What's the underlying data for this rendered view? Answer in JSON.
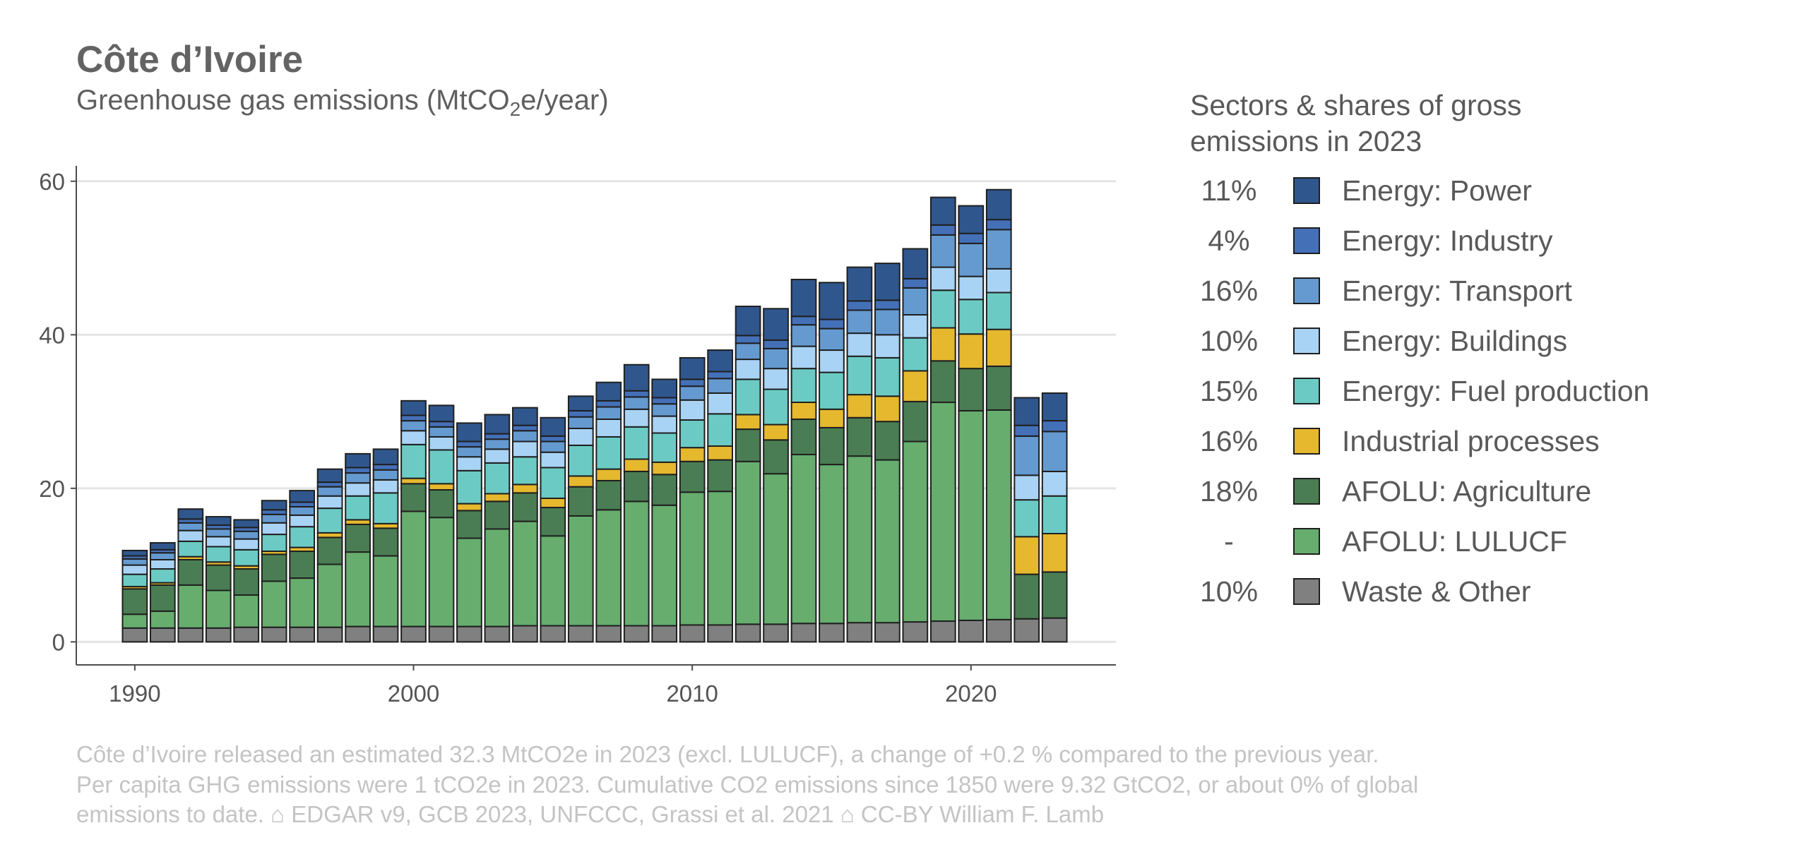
{
  "header": {
    "title": "Côte d’Ivoire",
    "subtitle_prefix": "Greenhouse gas emissions (MtCO",
    "subtitle_sub": "2",
    "subtitle_suffix": "e/year)"
  },
  "legend": {
    "title_line1": "Sectors & shares of gross",
    "title_line2": "emissions in 2023"
  },
  "caption": {
    "line1": "Côte d’Ivoire released an estimated 32.3 MtCO2e in 2023 (excl. LULUCF), a change of +0.2 % compared to the previous year.",
    "line2": "Per capita GHG emissions were 1 tCO2e in 2023. Cumulative CO2 emissions since 1850 were 9.32 GtCO2, or about 0% of global",
    "line3": "emissions to date. ⌂ EDGAR v9, GCB 2023, UNFCCC, Grassi et al. 2021 ⌂ CC-BY William F. Lamb"
  },
  "chart_data": {
    "type": "bar",
    "stacked": true,
    "title": "Côte d’Ivoire",
    "ylabel": "",
    "xlabel": "",
    "ylim": [
      -3,
      62
    ],
    "xlim": [
      1987.9,
      2025.2
    ],
    "y_ticks": [
      0,
      20,
      40,
      60
    ],
    "x_ticks": [
      1990,
      2000,
      2010,
      2020
    ],
    "grid": true,
    "legend_position": "right",
    "categories": [
      1990,
      1991,
      1992,
      1993,
      1994,
      1995,
      1996,
      1997,
      1998,
      1999,
      2000,
      2001,
      2002,
      2003,
      2004,
      2005,
      2006,
      2007,
      2008,
      2009,
      2010,
      2011,
      2012,
      2013,
      2014,
      2015,
      2016,
      2017,
      2018,
      2019,
      2020,
      2021,
      2022,
      2023
    ],
    "series": [
      {
        "name": "Waste & Other",
        "share": "10%",
        "color": "#808080",
        "values": [
          1.8,
          1.8,
          1.8,
          1.8,
          1.9,
          1.9,
          1.9,
          1.9,
          2.0,
          2.0,
          2.0,
          2.0,
          2.0,
          2.0,
          2.1,
          2.1,
          2.1,
          2.1,
          2.1,
          2.1,
          2.2,
          2.2,
          2.3,
          2.3,
          2.4,
          2.4,
          2.5,
          2.5,
          2.6,
          2.7,
          2.8,
          2.9,
          3.0,
          3.1
        ]
      },
      {
        "name": "AFOLU: LULUCF",
        "share": "-",
        "color": "#66ad6e",
        "values": [
          1.8,
          2.2,
          5.6,
          4.9,
          4.2,
          6.0,
          6.4,
          8.2,
          9.7,
          9.2,
          15.0,
          14.2,
          11.5,
          12.7,
          13.6,
          11.7,
          14.3,
          15.1,
          16.2,
          15.7,
          17.3,
          17.4,
          21.2,
          19.6,
          22.0,
          20.7,
          21.7,
          21.2,
          23.5,
          28.5,
          27.3,
          27.3,
          0,
          0
        ]
      },
      {
        "name": "AFOLU: Agriculture",
        "share": "18%",
        "color": "#4a7d53",
        "values": [
          3.3,
          3.4,
          3.3,
          3.3,
          3.4,
          3.5,
          3.5,
          3.5,
          3.6,
          3.6,
          3.6,
          3.6,
          3.6,
          3.6,
          3.7,
          3.7,
          3.8,
          3.8,
          3.9,
          4.0,
          4.0,
          4.1,
          4.2,
          4.4,
          4.6,
          4.8,
          5.0,
          5.0,
          5.2,
          5.4,
          5.5,
          5.7,
          5.8,
          6.0
        ]
      },
      {
        "name": "Industrial processes",
        "share": "16%",
        "color": "#e6b82e",
        "values": [
          0.3,
          0.3,
          0.4,
          0.4,
          0.4,
          0.4,
          0.5,
          0.6,
          0.6,
          0.6,
          0.7,
          0.8,
          0.9,
          1.0,
          1.1,
          1.2,
          1.4,
          1.5,
          1.6,
          1.6,
          1.8,
          1.8,
          1.9,
          2.0,
          2.2,
          2.4,
          3.0,
          3.3,
          4.0,
          4.3,
          4.5,
          4.8,
          4.9,
          5.0
        ]
      },
      {
        "name": "Energy: Fuel production",
        "share": "15%",
        "color": "#6bcbc4",
        "values": [
          1.6,
          1.8,
          2.0,
          2.0,
          2.1,
          2.2,
          2.7,
          3.2,
          3.1,
          4.0,
          4.4,
          4.4,
          4.3,
          4.0,
          3.6,
          4.0,
          4.0,
          4.2,
          4.2,
          3.8,
          3.6,
          4.2,
          4.6,
          4.6,
          4.4,
          4.8,
          5.0,
          5.0,
          4.3,
          4.9,
          4.5,
          4.8,
          4.8,
          4.9
        ]
      },
      {
        "name": "Energy: Buildings",
        "share": "10%",
        "color": "#a9d3f5",
        "values": [
          1.2,
          1.2,
          1.4,
          1.3,
          1.4,
          1.5,
          1.5,
          1.6,
          1.7,
          1.7,
          1.8,
          1.7,
          1.8,
          1.8,
          2.0,
          2.0,
          2.2,
          2.3,
          2.3,
          2.2,
          2.6,
          2.7,
          2.6,
          2.7,
          2.9,
          2.9,
          3.0,
          3.0,
          3.0,
          3.0,
          3.0,
          3.1,
          3.2,
          3.2
        ]
      },
      {
        "name": "Energy: Transport",
        "share": "16%",
        "color": "#659ad0",
        "values": [
          0.8,
          0.9,
          1.0,
          1.0,
          1.0,
          1.1,
          1.1,
          1.2,
          1.3,
          1.3,
          1.3,
          1.3,
          1.3,
          1.3,
          1.4,
          1.4,
          1.5,
          1.6,
          1.6,
          1.6,
          1.8,
          1.9,
          2.1,
          2.6,
          2.8,
          2.8,
          3.0,
          3.3,
          3.5,
          4.2,
          4.3,
          5.1,
          5.1,
          5.2
        ]
      },
      {
        "name": "Energy: Industry",
        "share": "4%",
        "color": "#4470b8",
        "values": [
          0.4,
          0.4,
          0.5,
          0.5,
          0.5,
          0.6,
          0.6,
          0.6,
          0.7,
          0.7,
          0.7,
          0.7,
          0.7,
          0.7,
          0.7,
          0.7,
          0.8,
          0.8,
          0.8,
          0.8,
          0.9,
          0.9,
          1.0,
          1.1,
          1.1,
          1.2,
          1.2,
          1.2,
          1.2,
          1.3,
          1.3,
          1.3,
          1.4,
          1.4
        ]
      },
      {
        "name": "Energy: Power",
        "share": "11%",
        "color": "#30578d",
        "values": [
          0.7,
          0.9,
          1.3,
          1.1,
          1.0,
          1.2,
          1.5,
          1.7,
          1.8,
          2.0,
          1.9,
          2.1,
          2.4,
          2.5,
          2.3,
          2.4,
          1.9,
          2.4,
          3.4,
          2.4,
          2.8,
          2.8,
          3.8,
          4.1,
          4.8,
          4.8,
          4.4,
          4.8,
          3.9,
          3.6,
          3.6,
          3.9,
          3.6,
          3.6
        ]
      }
    ]
  }
}
